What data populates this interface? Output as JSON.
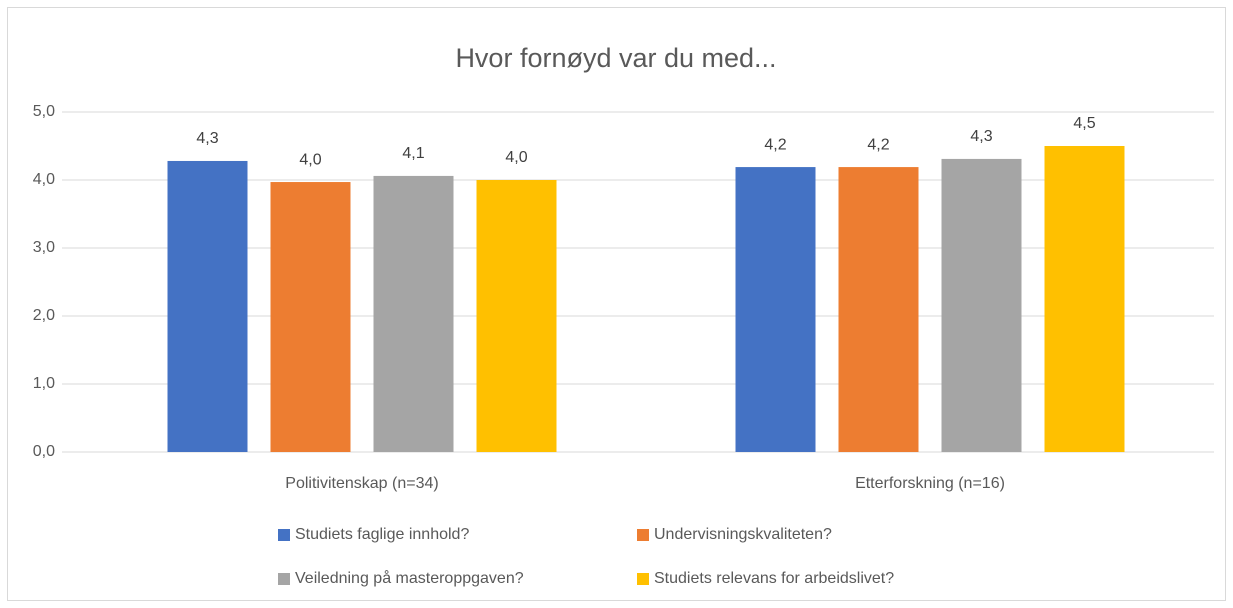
{
  "chart_data": {
    "type": "bar",
    "title": "Hvor fornøyd var du med...",
    "categories": [
      "Politivitenskap (n=34)",
      "Etterforskning (n=16)"
    ],
    "series": [
      {
        "name": "Studiets faglige innhold?",
        "color": "#4472c4",
        "values": [
          4.28,
          4.19
        ],
        "value_labels": [
          "4,3",
          "4,2"
        ]
      },
      {
        "name": "Undervisningskvaliteten?",
        "color": "#ed7d31",
        "values": [
          3.97,
          4.19
        ],
        "value_labels": [
          "4,0",
          "4,2"
        ]
      },
      {
        "name": "Veiledning på masteroppgaven?",
        "color": "#a5a5a5",
        "values": [
          4.06,
          4.31
        ],
        "value_labels": [
          "4,1",
          "4,3"
        ]
      },
      {
        "name": "Studiets relevans for arbeidslivet?",
        "color": "#ffc000",
        "values": [
          4.0,
          4.5
        ],
        "value_labels": [
          "4,0",
          "4,5"
        ]
      }
    ],
    "ylim": [
      0,
      5
    ],
    "yticks": [
      {
        "value": 0,
        "label": "0,0"
      },
      {
        "value": 1,
        "label": "1,0"
      },
      {
        "value": 2,
        "label": "2,0"
      },
      {
        "value": 3,
        "label": "3,0"
      },
      {
        "value": 4,
        "label": "4,0"
      },
      {
        "value": 5,
        "label": "5,0"
      }
    ],
    "grid": true,
    "legend": "bottom"
  }
}
